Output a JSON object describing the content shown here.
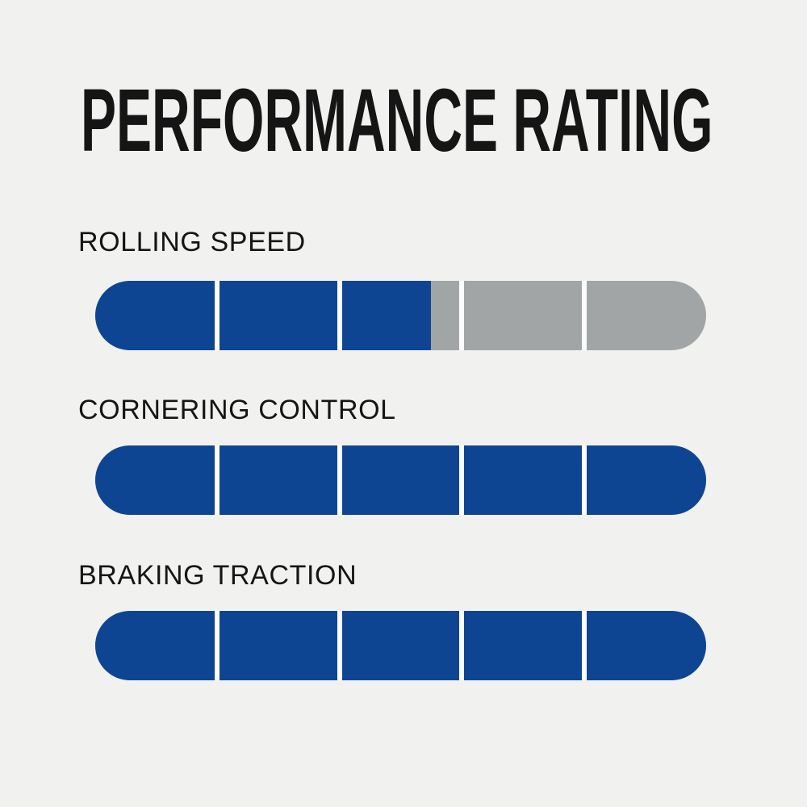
{
  "title": "PERFORMANCE RATING",
  "colors": {
    "background": "#F1F1EF",
    "bar_fill": "#0E4593",
    "bar_empty": "#A1A5A6",
    "separator": "#FCFCFC",
    "text": "#151515"
  },
  "chart_data": {
    "type": "bar",
    "title": "PERFORMANCE RATING",
    "max_rating": 5,
    "segments_per_bar": 5,
    "legend": "none",
    "categories": [
      "ROLLING SPEED",
      "CORNERING CONTROL",
      "BRAKING TRACTION"
    ],
    "values": [
      2.75,
      5,
      5
    ],
    "bars": [
      {
        "label": "ROLLING SPEED",
        "rating": 2.75,
        "max": 5,
        "fill_percent": 55
      },
      {
        "label": "CORNERING CONTROL",
        "rating": 5,
        "max": 5,
        "fill_percent": 100
      },
      {
        "label": "BRAKING TRACTION",
        "rating": 5,
        "max": 5,
        "fill_percent": 100
      }
    ]
  }
}
